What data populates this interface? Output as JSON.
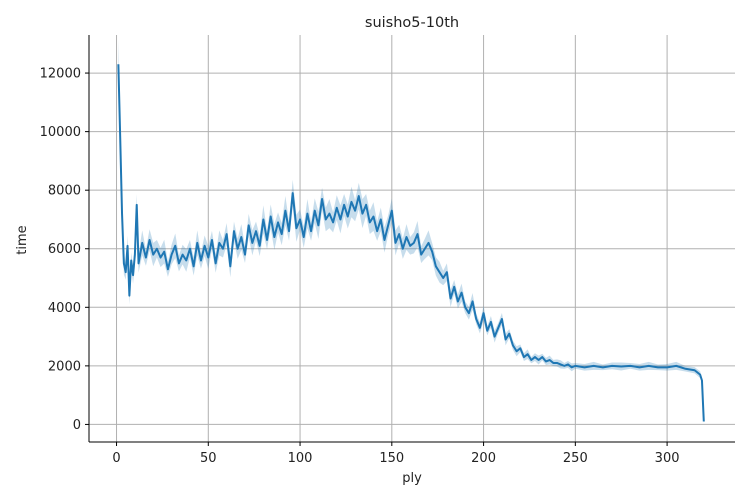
{
  "chart_data": {
    "type": "line",
    "title": "suisho5-10th",
    "xlabel": "ply",
    "ylabel": "time",
    "xlim": [
      -15,
      337
    ],
    "ylim": [
      -600,
      13300
    ],
    "x_ticks": [
      0,
      50,
      100,
      150,
      200,
      250,
      300
    ],
    "y_ticks": [
      0,
      2000,
      4000,
      6000,
      8000,
      10000,
      12000
    ],
    "grid": true,
    "legend": "none",
    "colors": {
      "line": "#1f77b4",
      "band": "#1f77b4",
      "grid": "#b0b0b0"
    },
    "series": [
      {
        "x": [
          1,
          2,
          3,
          4,
          5,
          6,
          7,
          8,
          9,
          10,
          11,
          12,
          14,
          16,
          18,
          20,
          22,
          24,
          26,
          28,
          30,
          32,
          34,
          36,
          38,
          40,
          42,
          44,
          46,
          48,
          50,
          52,
          54,
          56,
          58,
          60,
          62,
          64,
          66,
          68,
          70,
          72,
          74,
          76,
          78,
          80,
          82,
          84,
          86,
          88,
          90,
          92,
          94,
          96,
          98,
          100,
          102,
          104,
          106,
          108,
          110,
          112,
          114,
          116,
          118,
          120,
          122,
          124,
          126,
          128,
          130,
          132,
          134,
          136,
          138,
          140,
          142,
          144,
          146,
          148,
          150,
          152,
          154,
          156,
          158,
          160,
          162,
          164,
          166,
          168,
          170,
          172,
          174,
          176,
          178,
          180,
          182,
          184,
          186,
          188,
          190,
          192,
          194,
          196,
          198,
          200,
          202,
          204,
          206,
          208,
          210,
          212,
          214,
          216,
          218,
          220,
          222,
          224,
          226,
          228,
          230,
          232,
          234,
          236,
          238,
          240,
          242,
          244,
          246,
          248,
          250,
          255,
          260,
          265,
          270,
          275,
          280,
          285,
          290,
          295,
          300,
          305,
          310,
          315,
          318,
          319,
          320
        ],
        "y": [
          12300,
          9800,
          7200,
          5500,
          5200,
          6100,
          4400,
          5600,
          5100,
          5800,
          7500,
          5500,
          6200,
          5700,
          6300,
          5800,
          6000,
          5700,
          5900,
          5300,
          5800,
          6100,
          5500,
          5800,
          5600,
          6000,
          5400,
          6200,
          5600,
          6100,
          5700,
          6300,
          5500,
          6200,
          6000,
          6500,
          5400,
          6600,
          6000,
          6400,
          5800,
          6800,
          6200,
          6600,
          6100,
          7000,
          6300,
          7100,
          6400,
          6900,
          6500,
          7300,
          6600,
          7900,
          6700,
          7000,
          6400,
          7200,
          6600,
          7300,
          6800,
          7700,
          7000,
          7200,
          6900,
          7400,
          7000,
          7500,
          7100,
          7600,
          7300,
          7800,
          7200,
          7500,
          6900,
          7100,
          6600,
          7000,
          6300,
          6800,
          7300,
          6200,
          6500,
          6000,
          6400,
          6100,
          6200,
          6500,
          5800,
          6000,
          6200,
          5900,
          5400,
          5200,
          5000,
          5200,
          4300,
          4700,
          4200,
          4500,
          4000,
          3800,
          4200,
          3600,
          3300,
          3800,
          3200,
          3500,
          3000,
          3300,
          3600,
          2900,
          3100,
          2700,
          2500,
          2600,
          2300,
          2400,
          2200,
          2300,
          2200,
          2300,
          2150,
          2200,
          2100,
          2100,
          2050,
          2000,
          2050,
          1950,
          2000,
          1950,
          2000,
          1950,
          2000,
          1980,
          2000,
          1950,
          2000,
          1950,
          1950,
          2000,
          1900,
          1850,
          1700,
          1500,
          100
        ]
      }
    ]
  }
}
